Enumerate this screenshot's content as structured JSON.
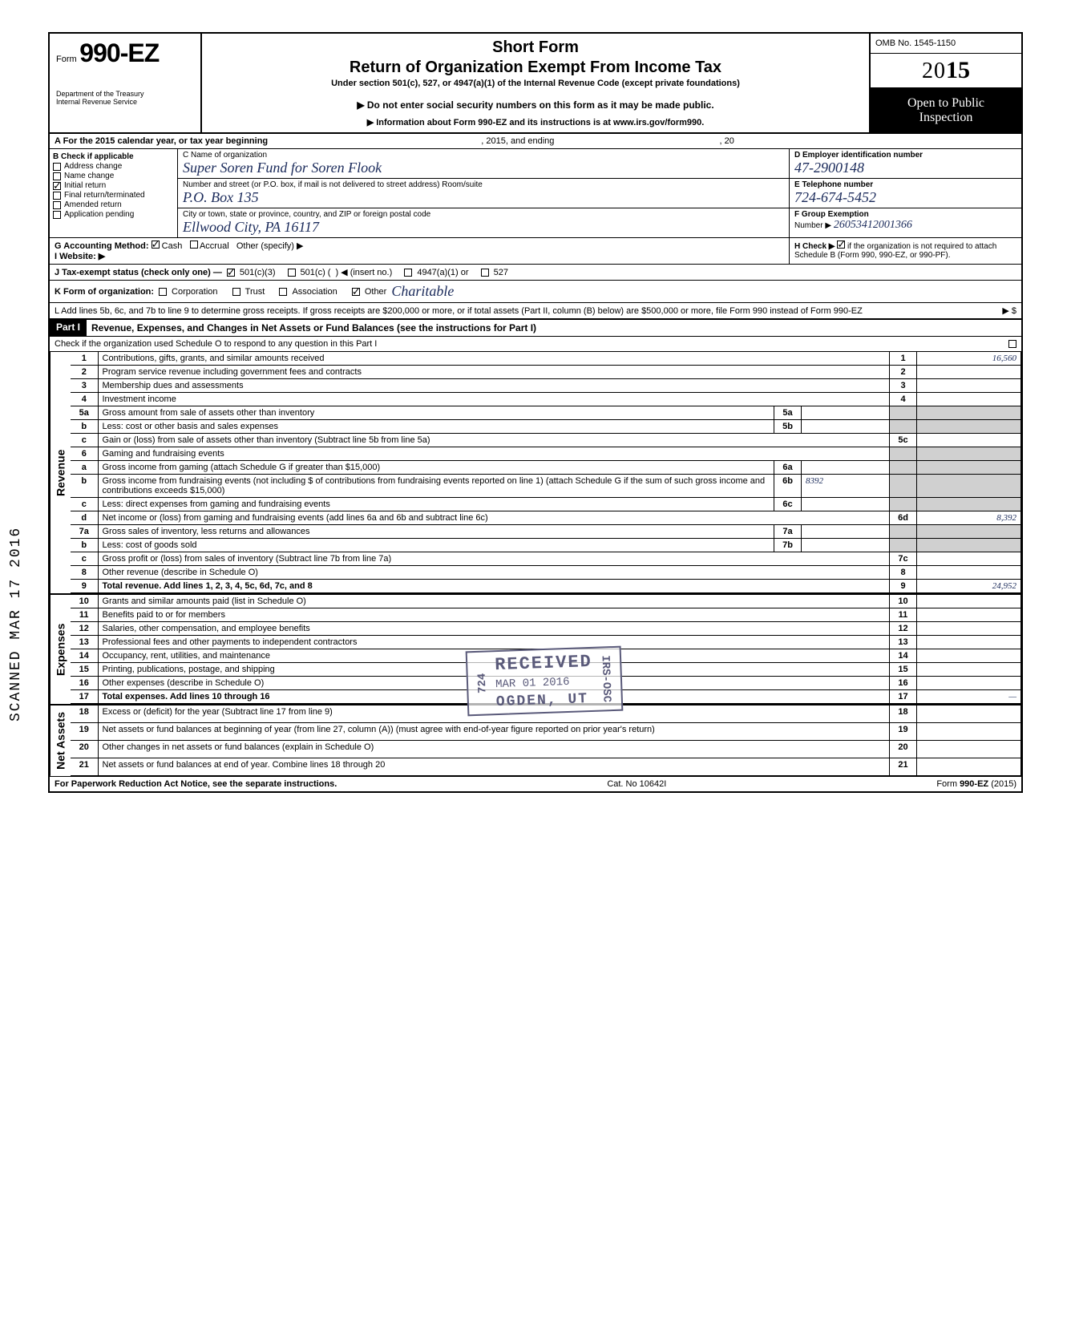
{
  "header": {
    "form_prefix": "Form",
    "form_number": "990-EZ",
    "short_form": "Short Form",
    "return_title": "Return of Organization Exempt From Income Tax",
    "under_section": "Under section 501(c), 527, or 4947(a)(1) of the Internal Revenue Code (except private foundations)",
    "do_not_enter": "▶ Do not enter social security numbers on this form as it may be made public.",
    "info_about": "▶ Information about Form 990-EZ and its instructions is at www.irs.gov/form990.",
    "dept1": "Department of the Treasury",
    "dept2": "Internal Revenue Service",
    "omb": "OMB No. 1545-1150",
    "year_20": "20",
    "year_15": "15",
    "open_public1": "Open to Public",
    "open_public2": "Inspection"
  },
  "row_a": {
    "label_left": "A  For the 2015 calendar year, or tax year beginning",
    "label_mid": ", 2015, and ending",
    "label_right": ", 20"
  },
  "col_b": {
    "header": "B  Check if applicable",
    "items": [
      {
        "label": "Address change",
        "checked": false
      },
      {
        "label": "Name change",
        "checked": false
      },
      {
        "label": "Initial return",
        "checked": true
      },
      {
        "label": "Final return/terminated",
        "checked": false
      },
      {
        "label": "Amended return",
        "checked": false
      },
      {
        "label": "Application pending",
        "checked": false
      }
    ]
  },
  "col_c": {
    "name_label": "C  Name of organization",
    "name_value": "Super Soren Fund for Soren Flook",
    "street_label": "Number and street (or P.O. box, if mail is not delivered to street address)           Room/suite",
    "street_value": "P.O. Box   135",
    "city_label": "City or town, state or province, country, and ZIP or foreign postal code",
    "city_value": "Ellwood City,    PA    16117"
  },
  "col_def": {
    "d_label": "D Employer identification number",
    "d_value": "47-2900148",
    "e_label": "E Telephone number",
    "e_value": "724-674-5452",
    "f_label": "F Group Exemption",
    "f_label2": "Number ▶",
    "f_value": "26053412001366"
  },
  "row_g": {
    "label": "G  Accounting Method:",
    "cash": "Cash",
    "accrual": "Accrual",
    "other": "Other (specify) ▶",
    "cash_checked": true
  },
  "row_h": {
    "label": "H  Check ▶",
    "text": "if the organization is not required to attach Schedule B (Form 990, 990-EZ, or 990-PF).",
    "checked": true
  },
  "row_i": {
    "label": "I   Website: ▶"
  },
  "row_j": {
    "label": "J  Tax-exempt status (check only one) —",
    "opt1": "501(c)(3)",
    "opt2": "501(c) (",
    "opt2b": ") ◀ (insert no.)",
    "opt3": "4947(a)(1) or",
    "opt4": "527",
    "opt1_checked": true
  },
  "row_k": {
    "label": "K  Form of organization:",
    "corp": "Corporation",
    "trust": "Trust",
    "assoc": "Association",
    "other": "Other",
    "other_value": "Charitable",
    "other_checked": true
  },
  "row_l": {
    "text": "L  Add lines 5b, 6c, and 7b to line 9 to determine gross receipts. If gross receipts are $200,000 or more, or if total assets (Part II, column (B) below) are $500,000 or more, file Form 990 instead of Form 990-EZ",
    "arrow": "▶  $"
  },
  "part1": {
    "label": "Part I",
    "title": "Revenue, Expenses, and Changes in Net Assets or Fund Balances (see the instructions for Part I)",
    "check_line": "Check if the organization used Schedule O to respond to any question in this Part I"
  },
  "sections": {
    "revenue": "Revenue",
    "expenses": "Expenses",
    "netassets": "Net Assets"
  },
  "lines": [
    {
      "n": "1",
      "desc": "Contributions, gifts, grants, and similar amounts received",
      "amt": "16,560"
    },
    {
      "n": "2",
      "desc": "Program service revenue including government fees and contracts",
      "amt": ""
    },
    {
      "n": "3",
      "desc": "Membership dues and assessments",
      "amt": ""
    },
    {
      "n": "4",
      "desc": "Investment income",
      "amt": ""
    },
    {
      "n": "5a",
      "desc": "Gross amount from sale of assets other than inventory",
      "sub": "5a",
      "subamt": ""
    },
    {
      "n": "b",
      "desc": "Less: cost or other basis and sales expenses",
      "sub": "5b",
      "subamt": ""
    },
    {
      "n": "c",
      "desc": "Gain or (loss) from sale of assets other than inventory (Subtract line 5b from line 5a)",
      "amtn": "5c",
      "amt": ""
    },
    {
      "n": "6",
      "desc": "Gaming and fundraising events"
    },
    {
      "n": "a",
      "desc": "Gross income from gaming (attach Schedule G if greater than $15,000)",
      "sub": "6a",
      "subamt": ""
    },
    {
      "n": "b",
      "desc": "Gross income from fundraising events (not including  $                    of contributions from fundraising events reported on line 1) (attach Schedule G if the sum of such gross income and contributions exceeds $15,000)",
      "sub": "6b",
      "subamt": "8392"
    },
    {
      "n": "c",
      "desc": "Less: direct expenses from gaming and fundraising events",
      "sub": "6c",
      "subamt": ""
    },
    {
      "n": "d",
      "desc": "Net income or (loss) from gaming and fundraising events (add lines 6a and 6b and subtract line 6c)",
      "amtn": "6d",
      "amt": "8,392"
    },
    {
      "n": "7a",
      "desc": "Gross sales of inventory, less returns and allowances",
      "sub": "7a",
      "subamt": ""
    },
    {
      "n": "b",
      "desc": "Less: cost of goods sold",
      "sub": "7b",
      "subamt": ""
    },
    {
      "n": "c",
      "desc": "Gross profit or (loss) from sales of inventory (Subtract line 7b from line 7a)",
      "amtn": "7c",
      "amt": ""
    },
    {
      "n": "8",
      "desc": "Other revenue (describe in Schedule O)",
      "amtn": "8",
      "amt": ""
    },
    {
      "n": "9",
      "desc": "Total revenue. Add lines 1, 2, 3, 4, 5c, 6d, 7c, and 8",
      "amtn": "9",
      "amt": "24,952",
      "bold": true
    },
    {
      "n": "10",
      "desc": "Grants and similar amounts paid (list in Schedule O)",
      "amtn": "10",
      "amt": ""
    },
    {
      "n": "11",
      "desc": "Benefits paid to or for members",
      "amtn": "11",
      "amt": ""
    },
    {
      "n": "12",
      "desc": "Salaries, other compensation, and employee benefits",
      "amtn": "12",
      "amt": ""
    },
    {
      "n": "13",
      "desc": "Professional fees and other payments to independent contractors",
      "amtn": "13",
      "amt": ""
    },
    {
      "n": "14",
      "desc": "Occupancy, rent, utilities, and maintenance",
      "amtn": "14",
      "amt": ""
    },
    {
      "n": "15",
      "desc": "Printing, publications, postage, and shipping",
      "amtn": "15",
      "amt": ""
    },
    {
      "n": "16",
      "desc": "Other expenses (describe in Schedule O)",
      "amtn": "16",
      "amt": ""
    },
    {
      "n": "17",
      "desc": "Total expenses. Add lines 10 through 16",
      "amtn": "17",
      "amt": "—",
      "bold": true
    },
    {
      "n": "18",
      "desc": "Excess or (deficit) for the year (Subtract line 17 from line 9)",
      "amtn": "18",
      "amt": ""
    },
    {
      "n": "19",
      "desc": "Net assets or fund balances at beginning of year (from line 27, column (A)) (must agree with end-of-year figure reported on prior year's return)",
      "amtn": "19",
      "amt": ""
    },
    {
      "n": "20",
      "desc": "Other changes in net assets or fund balances (explain in Schedule O)",
      "amtn": "20",
      "amt": ""
    },
    {
      "n": "21",
      "desc": "Net assets or fund balances at end of year. Combine lines 18 through 20",
      "amtn": "21",
      "amt": "",
      "arrow": true
    }
  ],
  "footer": {
    "left": "For Paperwork Reduction Act Notice, see the separate instructions.",
    "mid": "Cat. No  10642I",
    "right": "Form 990-EZ (2015)"
  },
  "scanned": "SCANNED  MAR 17 2016",
  "stamp": {
    "received": "RECEIVED",
    "date": "MAR 01 2016",
    "ogden": "OGDEN, UT",
    "irs": "IRS-OSC",
    "left_num": "724"
  },
  "colors": {
    "ink": "#1a2a5a",
    "stamp": "#5a5a7a",
    "black": "#000000",
    "shade": "#d0d0d0"
  }
}
